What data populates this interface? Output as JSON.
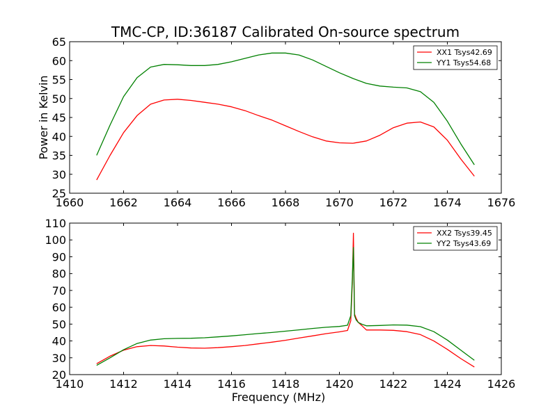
{
  "title": "TMC-CP, ID:36187 Calibrated On-source spectrum",
  "colors": {
    "red": "#ff0000",
    "green": "#008000"
  },
  "chart_data": [
    {
      "type": "line",
      "title": "TMC-CP, ID:36187 Calibrated On-source spectrum",
      "xlabel": "",
      "ylabel": "Power in Kelvin",
      "xlim": [
        1660,
        1676
      ],
      "ylim": [
        25,
        65
      ],
      "xticks": [
        "1660",
        "1662",
        "1664",
        "1666",
        "1668",
        "1670",
        "1672",
        "1674",
        "1676"
      ],
      "yticks": [
        "25",
        "30",
        "35",
        "40",
        "45",
        "50",
        "55",
        "60",
        "65"
      ],
      "grid": false,
      "legend_position": "top-right",
      "series": [
        {
          "name": "XX1 Tsys42.69",
          "color": "#ff0000",
          "x": [
            1661.0,
            1661.5,
            1662.0,
            1662.5,
            1663.0,
            1663.5,
            1664.0,
            1664.5,
            1665.0,
            1665.5,
            1666.0,
            1666.5,
            1667.0,
            1667.5,
            1668.0,
            1668.5,
            1669.0,
            1669.5,
            1670.0,
            1670.5,
            1671.0,
            1671.5,
            1672.0,
            1672.5,
            1673.0,
            1673.5,
            1674.0,
            1674.5,
            1675.0
          ],
          "y": [
            28.5,
            35,
            41,
            45.5,
            48.5,
            49.6,
            49.8,
            49.5,
            49.0,
            48.5,
            47.8,
            46.8,
            45.5,
            44.3,
            42.8,
            41.3,
            39.9,
            38.8,
            38.3,
            38.2,
            38.8,
            40.3,
            42.3,
            43.5,
            43.8,
            42.5,
            39.0,
            34.0,
            29.5
          ]
        },
        {
          "name": "YY1 Tsys54.68",
          "color": "#008000",
          "x": [
            1661.0,
            1661.5,
            1662.0,
            1662.5,
            1663.0,
            1663.5,
            1664.0,
            1664.5,
            1665.0,
            1665.5,
            1666.0,
            1666.5,
            1667.0,
            1667.5,
            1668.0,
            1668.5,
            1669.0,
            1669.5,
            1670.0,
            1670.5,
            1671.0,
            1671.5,
            1672.0,
            1672.5,
            1673.0,
            1673.5,
            1674.0,
            1674.5,
            1675.0
          ],
          "y": [
            35,
            43,
            50.5,
            55.5,
            58.3,
            59.0,
            58.9,
            58.7,
            58.7,
            59.0,
            59.7,
            60.6,
            61.5,
            62.0,
            62.0,
            61.5,
            60.2,
            58.5,
            56.8,
            55.3,
            54.0,
            53.3,
            53.0,
            52.8,
            51.8,
            49.0,
            44.0,
            38.0,
            32.5
          ]
        }
      ]
    },
    {
      "type": "line",
      "title": "",
      "xlabel": "Frequency (MHz)",
      "ylabel": "",
      "xlim": [
        1410,
        1426
      ],
      "ylim": [
        20,
        110
      ],
      "xticks": [
        "1410",
        "1412",
        "1414",
        "1416",
        "1418",
        "1420",
        "1422",
        "1424",
        "1426"
      ],
      "yticks": [
        "20",
        "30",
        "40",
        "50",
        "60",
        "70",
        "80",
        "90",
        "100",
        "110"
      ],
      "grid": false,
      "legend_position": "top-right",
      "series": [
        {
          "name": "XX2 Tsys39.45",
          "color": "#ff0000",
          "x": [
            1411.0,
            1411.5,
            1412.0,
            1412.5,
            1413.0,
            1413.5,
            1414.0,
            1414.5,
            1415.0,
            1415.5,
            1416.0,
            1416.5,
            1417.0,
            1417.5,
            1418.0,
            1418.5,
            1419.0,
            1419.5,
            1420.0,
            1420.3,
            1420.42,
            1420.48,
            1420.52,
            1420.56,
            1420.62,
            1420.7,
            1420.85,
            1421.0,
            1421.5,
            1422.0,
            1422.5,
            1423.0,
            1423.5,
            1424.0,
            1424.5,
            1425.0
          ],
          "y": [
            26.5,
            31.0,
            34.5,
            36.6,
            37.3,
            37.0,
            36.3,
            35.8,
            35.7,
            36.0,
            36.6,
            37.3,
            38.3,
            39.3,
            40.4,
            41.7,
            43.0,
            44.3,
            45.4,
            46.2,
            52.0,
            75.0,
            104.0,
            56.0,
            53.5,
            51.0,
            48.8,
            46.5,
            46.5,
            46.3,
            45.5,
            43.8,
            40.0,
            35.0,
            29.5,
            24.5
          ]
        },
        {
          "name": "YY2 Tsys43.69",
          "color": "#008000",
          "x": [
            1411.0,
            1411.5,
            1412.0,
            1412.5,
            1413.0,
            1413.5,
            1414.0,
            1414.5,
            1415.0,
            1415.5,
            1416.0,
            1416.5,
            1417.0,
            1417.5,
            1418.0,
            1418.5,
            1419.0,
            1419.5,
            1420.0,
            1420.3,
            1420.42,
            1420.48,
            1420.52,
            1420.56,
            1420.62,
            1420.7,
            1420.85,
            1421.0,
            1421.5,
            1422.0,
            1422.5,
            1423.0,
            1423.5,
            1424.0,
            1424.5,
            1425.0
          ],
          "y": [
            25.5,
            30.0,
            34.8,
            38.5,
            40.5,
            41.3,
            41.5,
            41.6,
            41.9,
            42.4,
            43.0,
            43.7,
            44.4,
            45.0,
            45.8,
            46.6,
            47.4,
            48.1,
            48.6,
            49.3,
            55.0,
            78.0,
            95.5,
            55.0,
            52.5,
            51.0,
            49.8,
            49.0,
            49.2,
            49.5,
            49.4,
            48.5,
            45.5,
            40.5,
            34.5,
            28.5
          ]
        }
      ]
    }
  ]
}
